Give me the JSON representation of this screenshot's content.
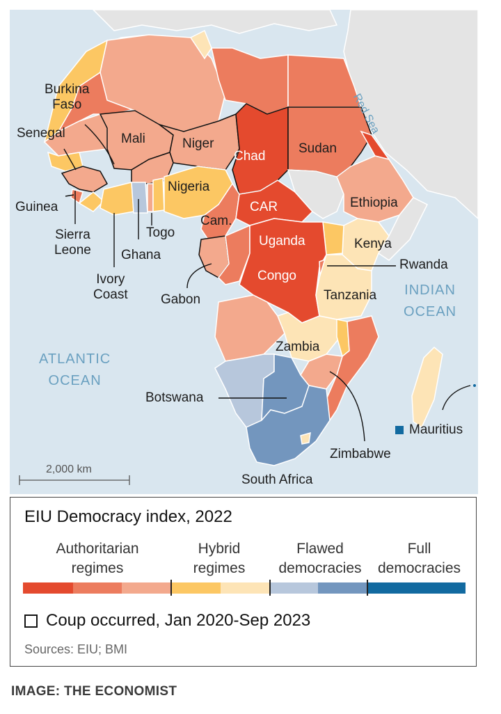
{
  "map": {
    "labels": {
      "burkina_faso": "Burkina\nFaso",
      "senegal": "Senegal",
      "mali": "Mali",
      "niger": "Niger",
      "chad": "Chad",
      "sudan": "Sudan",
      "nigeria": "Nigeria",
      "guinea": "Guinea",
      "car": "CAR",
      "ethiopia": "Ethiopia",
      "cameroon": "Cam.",
      "uganda": "Uganda",
      "kenya": "Kenya",
      "togo": "Togo",
      "sierra_leone": "Sierra\nLeone",
      "ghana": "Ghana",
      "congo": "Congo",
      "rwanda": "Rwanda",
      "ivory_coast": "Ivory\nCoast",
      "gabon": "Gabon",
      "tanzania": "Tanzania",
      "zambia": "Zambia",
      "botswana": "Botswana",
      "mauritius": "Mauritius",
      "zimbabwe": "Zimbabwe",
      "south_africa": "South Africa"
    },
    "oceans": {
      "atlantic": "ATLANTIC\nOCEAN",
      "indian": "INDIAN\nOCEAN",
      "red_sea": "Red Sea"
    },
    "scale_bar": "2,000 km",
    "categories": {
      "authoritarian_dark": "authoritarian",
      "authoritarian_mid": "authoritarian",
      "authoritarian_light": "authoritarian",
      "hybrid": "hybrid",
      "hybrid_light": "hybrid",
      "flawed": "flawed democracy",
      "full": "full democracy"
    }
  },
  "legend": {
    "title": "EIU Democracy index, 2022",
    "categories": [
      {
        "label": "Authoritarian\nregimes"
      },
      {
        "label": "Hybrid\nregimes"
      },
      {
        "label": "Flawed\ndemocracies"
      },
      {
        "label": "Full\ndemocracies"
      }
    ],
    "coup_note": "Coup occurred, Jan 2020-Sep 2023",
    "sources": "Sources: EIU; BMI"
  },
  "credit": "IMAGE: THE ECONOMIST",
  "colors": {
    "brand_red": "#e3120b",
    "auth_dark": "#e44a2e",
    "auth_mid": "#ec7c5e",
    "auth_light": "#f3a98d",
    "hybrid": "#fcc763",
    "hybrid_light": "#fde4b6",
    "flawed_light": "#b7c7dc",
    "flawed": "#7396be",
    "full": "#126aa0",
    "sea": "#d9e6ef",
    "other_land": "#e4e4e4"
  }
}
